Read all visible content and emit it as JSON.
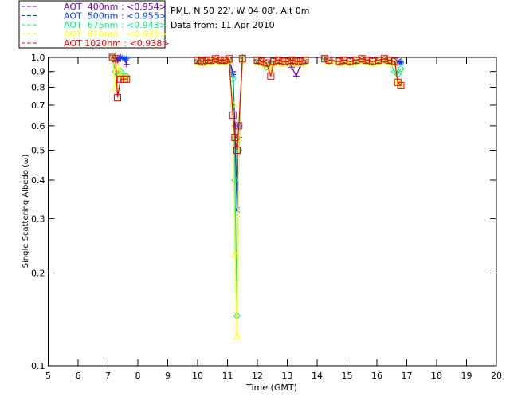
{
  "header": {
    "location": "PML, N 50 22', W 04 08', Alt 0m",
    "date": "Data from: 11 Apr 2010"
  },
  "chart_data": {
    "type": "line",
    "title": "",
    "xlabel": "Time (GMT)",
    "ylabel": "Single Scattering Albedo (ω)",
    "xlim": [
      5,
      20
    ],
    "ylim": [
      0.1,
      1.0
    ],
    "yscale": "log",
    "xticks": [
      "5",
      "6",
      "7",
      "8",
      "9",
      "10",
      "11",
      "12",
      "13",
      "14",
      "15",
      "16",
      "17",
      "18",
      "19",
      "20"
    ],
    "yticks": [
      "0.1",
      "0.2",
      "0.3",
      "0.4",
      "0.5",
      "0.6",
      "0.7",
      "0.8",
      "0.9",
      "1.0"
    ],
    "legend_placement": "top-left outside",
    "x": [
      7.15,
      7.25,
      7.32,
      7.42,
      7.55,
      7.62,
      10.0,
      10.15,
      10.3,
      10.45,
      10.6,
      10.75,
      10.9,
      11.05,
      11.18,
      11.25,
      11.32,
      11.38,
      11.5,
      12.0,
      12.15,
      12.3,
      12.45,
      12.55,
      12.7,
      12.85,
      13.0,
      13.15,
      13.3,
      13.45,
      13.6,
      14.25,
      14.4,
      14.75,
      14.9,
      15.1,
      15.3,
      15.5,
      15.65,
      15.85,
      16.05,
      16.25,
      16.4,
      16.6,
      16.7,
      16.8
    ],
    "series": [
      {
        "name": "AOT  400nm : <0.954>",
        "color": "#7000c0",
        "marker": "plus",
        "values": [
          1.0,
          0.99,
          0.98,
          0.99,
          0.99,
          0.95,
          0.98,
          0.97,
          0.98,
          0.98,
          0.99,
          0.98,
          0.98,
          0.99,
          0.9,
          0.6,
          0.32,
          0.55,
          1.0,
          0.98,
          0.97,
          0.96,
          0.97,
          0.97,
          0.98,
          0.97,
          0.96,
          0.93,
          0.87,
          0.95,
          0.97,
          0.99,
          0.98,
          0.97,
          0.98,
          0.97,
          0.98,
          0.99,
          0.98,
          0.97,
          0.98,
          0.99,
          0.98,
          0.97,
          0.96,
          0.97
        ]
      },
      {
        "name": "AOT  500nm : <0.955>",
        "color": "#0040ff",
        "marker": "asterisk",
        "values": [
          1.0,
          0.99,
          0.99,
          1.0,
          0.99,
          0.99,
          0.97,
          0.96,
          0.97,
          0.97,
          0.98,
          0.97,
          0.97,
          0.98,
          0.88,
          0.55,
          0.32,
          0.6,
          1.0,
          0.97,
          0.96,
          0.95,
          0.96,
          0.96,
          0.97,
          0.96,
          0.96,
          0.97,
          0.96,
          0.96,
          0.97,
          0.99,
          0.98,
          0.96,
          0.97,
          0.96,
          0.97,
          0.98,
          0.97,
          0.96,
          0.97,
          0.98,
          0.97,
          0.96,
          0.97,
          0.96
        ]
      },
      {
        "name": "AOT  675nm : <0.943>",
        "color": "#00f080",
        "marker": "diamond",
        "values": [
          1.0,
          0.9,
          0.88,
          0.9,
          0.87,
          0.87,
          0.97,
          0.96,
          0.97,
          0.97,
          0.98,
          0.97,
          0.97,
          0.98,
          0.85,
          0.4,
          0.145,
          0.5,
          0.99,
          0.97,
          0.96,
          0.93,
          0.96,
          0.96,
          0.97,
          0.96,
          0.96,
          0.97,
          0.96,
          0.96,
          0.97,
          0.99,
          0.97,
          0.96,
          0.97,
          0.96,
          0.97,
          0.98,
          0.97,
          0.96,
          0.97,
          0.98,
          0.97,
          0.9,
          0.88,
          0.92
        ]
      },
      {
        "name": "AOT  870nm : <0.935>",
        "color": "#ffff00",
        "marker": "triangle",
        "values": [
          1.0,
          0.8,
          0.93,
          0.88,
          0.86,
          0.86,
          0.97,
          0.96,
          0.97,
          0.97,
          0.98,
          0.97,
          0.97,
          0.98,
          0.71,
          0.23,
          0.125,
          0.55,
          0.99,
          0.97,
          0.96,
          0.95,
          0.92,
          0.96,
          0.97,
          0.96,
          0.96,
          0.97,
          0.96,
          0.96,
          0.97,
          0.99,
          0.97,
          0.96,
          0.97,
          0.96,
          0.97,
          0.98,
          0.97,
          0.96,
          0.97,
          0.98,
          0.97,
          0.96,
          0.84,
          0.82
        ]
      },
      {
        "name": "AOT 1020nm : <0.938>",
        "color": "#ff0000",
        "marker": "square",
        "values": [
          1.0,
          0.99,
          0.74,
          0.85,
          0.85,
          0.85,
          0.98,
          0.97,
          0.98,
          0.98,
          0.99,
          0.98,
          0.98,
          0.99,
          0.65,
          0.55,
          0.5,
          0.6,
          0.99,
          0.98,
          0.97,
          0.96,
          0.87,
          0.97,
          0.98,
          0.97,
          0.97,
          0.98,
          0.97,
          0.97,
          0.98,
          0.99,
          0.98,
          0.97,
          0.98,
          0.97,
          0.98,
          0.99,
          0.98,
          0.97,
          0.98,
          0.99,
          0.98,
          0.97,
          0.83,
          0.81
        ]
      }
    ]
  }
}
